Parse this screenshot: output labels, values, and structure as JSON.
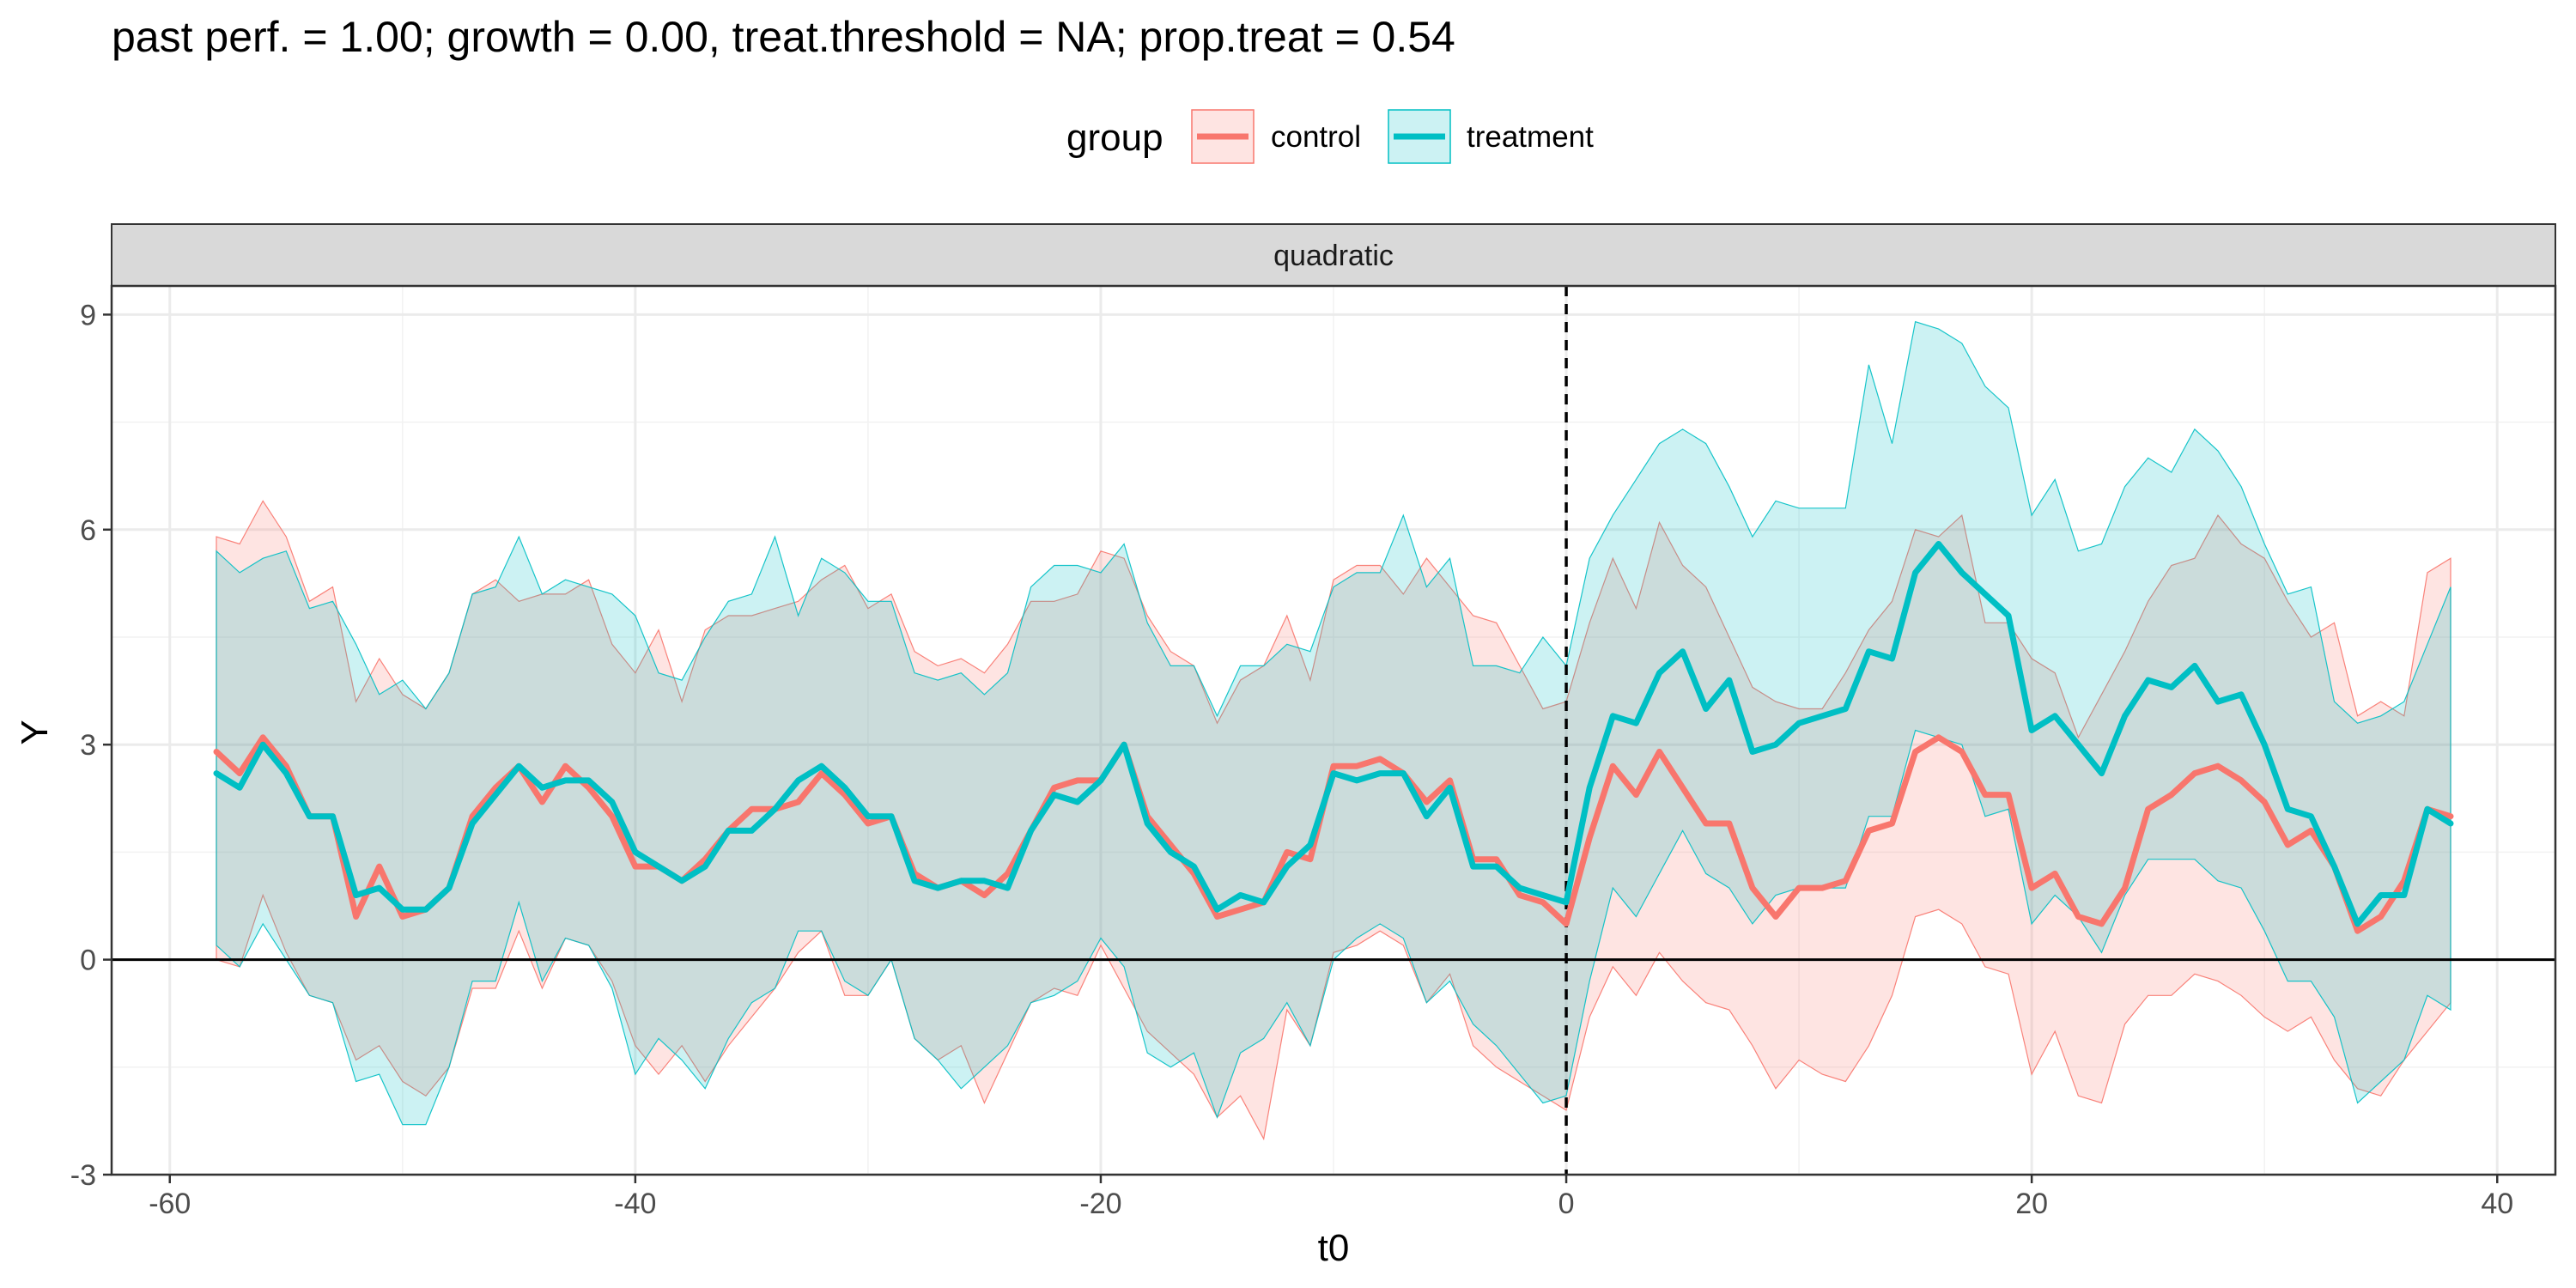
{
  "chart_data": {
    "type": "line",
    "title": "past perf. = 1.00; growth = 0.00,  treat.threshold = NA;  prop.treat = 0.54",
    "facet_label": "quadratic",
    "xlabel": "t0",
    "ylabel": "Y",
    "xlim": [
      -62.5,
      42.5
    ],
    "ylim": [
      -3,
      9.4
    ],
    "x_ticks": [
      -60,
      -40,
      -20,
      0,
      20,
      40
    ],
    "y_ticks": [
      -3,
      0,
      3,
      6,
      9
    ],
    "x_tick_labels": [
      "-60",
      "-40",
      "-20",
      "0",
      "20",
      "40"
    ],
    "y_tick_labels": [
      "-3",
      "0",
      "3",
      "6",
      "9"
    ],
    "grid": true,
    "vline_x": 0,
    "hline_y": 0,
    "legend": {
      "title": "group",
      "position": "top"
    },
    "x": [
      -58,
      -57,
      -56,
      -55,
      -54,
      -53,
      -52,
      -51,
      -50,
      -49,
      -48,
      -47,
      -46,
      -45,
      -44,
      -43,
      -42,
      -41,
      -40,
      -39,
      -38,
      -37,
      -36,
      -35,
      -34,
      -33,
      -32,
      -31,
      -30,
      -29,
      -28,
      -27,
      -26,
      -25,
      -24,
      -23,
      -22,
      -21,
      -20,
      -19,
      -18,
      -17,
      -16,
      -15,
      -14,
      -13,
      -12,
      -11,
      -10,
      -9,
      -8,
      -7,
      -6,
      -5,
      -4,
      -3,
      -2,
      -1,
      0,
      1,
      2,
      3,
      4,
      5,
      6,
      7,
      8,
      9,
      10,
      11,
      12,
      13,
      14,
      15,
      16,
      17,
      18,
      19,
      20,
      21,
      22,
      23,
      24,
      25,
      26,
      27,
      28,
      29,
      30,
      31,
      32,
      33,
      34,
      35,
      36,
      37,
      38
    ],
    "series": [
      {
        "name": "control",
        "color": "#F8766D",
        "values": [
          2.9,
          2.6,
          3.1,
          2.7,
          2.0,
          2.0,
          0.6,
          1.3,
          0.6,
          0.7,
          1.0,
          2.0,
          2.4,
          2.7,
          2.2,
          2.7,
          2.4,
          2.0,
          1.3,
          1.3,
          1.1,
          1.4,
          1.8,
          2.1,
          2.1,
          2.2,
          2.6,
          2.3,
          1.9,
          2.0,
          1.2,
          1.0,
          1.1,
          0.9,
          1.2,
          1.8,
          2.4,
          2.5,
          2.5,
          3.0,
          2.0,
          1.6,
          1.2,
          0.6,
          0.7,
          0.8,
          1.5,
          1.4,
          2.7,
          2.7,
          2.8,
          2.6,
          2.2,
          2.5,
          1.4,
          1.4,
          0.9,
          0.8,
          0.5,
          1.7,
          2.7,
          2.3,
          2.9,
          2.4,
          1.9,
          1.9,
          1.0,
          0.6,
          1.0,
          1.0,
          1.1,
          1.8,
          1.9,
          2.9,
          3.1,
          2.9,
          2.3,
          2.3,
          1.0,
          1.2,
          0.6,
          0.5,
          1.0,
          2.1,
          2.3,
          2.6,
          2.7,
          2.5,
          2.2,
          1.6,
          1.8,
          1.3,
          0.4,
          0.6,
          1.1,
          2.1,
          2.0
        ],
        "lower": [
          0.0,
          -0.1,
          0.9,
          0.1,
          -0.5,
          -0.6,
          -1.4,
          -1.2,
          -1.7,
          -1.9,
          -1.5,
          -0.4,
          -0.4,
          0.4,
          -0.4,
          0.3,
          0.2,
          -0.3,
          -1.2,
          -1.6,
          -1.2,
          -1.7,
          -1.2,
          -0.8,
          -0.4,
          0.1,
          0.4,
          -0.5,
          -0.5,
          0.0,
          -1.1,
          -1.4,
          -1.2,
          -2.0,
          -1.3,
          -0.6,
          -0.4,
          -0.5,
          0.2,
          -0.4,
          -1.0,
          -1.3,
          -1.6,
          -2.2,
          -1.9,
          -2.5,
          -0.7,
          -1.2,
          0.1,
          0.2,
          0.4,
          0.2,
          -0.6,
          -0.2,
          -1.2,
          -1.5,
          -1.7,
          -1.9,
          -2.1,
          -0.8,
          -0.1,
          -0.5,
          0.1,
          -0.3,
          -0.6,
          -0.7,
          -1.2,
          -1.8,
          -1.4,
          -1.6,
          -1.7,
          -1.2,
          -0.5,
          0.6,
          0.7,
          0.5,
          -0.1,
          -0.2,
          -1.6,
          -1.0,
          -1.9,
          -2.0,
          -0.9,
          -0.5,
          -0.5,
          -0.2,
          -0.3,
          -0.5,
          -0.8,
          -1.0,
          -0.8,
          -1.4,
          -1.8,
          -1.9,
          -1.4,
          -1.0,
          -0.6
        ],
        "upper": [
          5.9,
          5.8,
          6.4,
          5.9,
          5.0,
          5.2,
          3.6,
          4.2,
          3.7,
          3.5,
          4.0,
          5.1,
          5.3,
          5.0,
          5.1,
          5.1,
          5.3,
          4.4,
          4.0,
          4.6,
          3.6,
          4.6,
          4.8,
          4.8,
          4.9,
          5.0,
          5.3,
          5.5,
          4.9,
          5.1,
          4.3,
          4.1,
          4.2,
          4.0,
          4.4,
          5.0,
          5.0,
          5.1,
          5.7,
          5.6,
          4.8,
          4.3,
          4.1,
          3.3,
          3.9,
          4.1,
          4.8,
          3.9,
          5.3,
          5.5,
          5.5,
          5.1,
          5.6,
          5.2,
          4.8,
          4.7,
          4.1,
          3.5,
          3.6,
          4.7,
          5.6,
          4.9,
          6.1,
          5.5,
          5.2,
          4.5,
          3.8,
          3.6,
          3.5,
          3.5,
          4.0,
          4.6,
          5.0,
          6.0,
          5.9,
          6.2,
          4.7,
          4.7,
          4.2,
          4.0,
          3.1,
          3.7,
          4.3,
          5.0,
          5.5,
          5.6,
          6.2,
          5.8,
          5.6,
          5.0,
          4.5,
          4.7,
          3.4,
          3.6,
          3.4,
          5.4,
          5.6
        ]
      },
      {
        "name": "treatment",
        "color": "#00BFC4",
        "values": [
          2.6,
          2.4,
          3.0,
          2.6,
          2.0,
          2.0,
          0.9,
          1.0,
          0.7,
          0.7,
          1.0,
          1.9,
          2.3,
          2.7,
          2.4,
          2.5,
          2.5,
          2.2,
          1.5,
          1.3,
          1.1,
          1.3,
          1.8,
          1.8,
          2.1,
          2.5,
          2.7,
          2.4,
          2.0,
          2.0,
          1.1,
          1.0,
          1.1,
          1.1,
          1.0,
          1.8,
          2.3,
          2.2,
          2.5,
          3.0,
          1.9,
          1.5,
          1.3,
          0.7,
          0.9,
          0.8,
          1.3,
          1.6,
          2.6,
          2.5,
          2.6,
          2.6,
          2.0,
          2.4,
          1.3,
          1.3,
          1.0,
          0.9,
          0.8,
          2.4,
          3.4,
          3.3,
          4.0,
          4.3,
          3.5,
          3.9,
          2.9,
          3.0,
          3.3,
          3.4,
          3.5,
          4.3,
          4.2,
          5.4,
          5.8,
          5.4,
          5.1,
          4.8,
          3.2,
          3.4,
          3.0,
          2.6,
          3.4,
          3.9,
          3.8,
          4.1,
          3.6,
          3.7,
          3.0,
          2.1,
          2.0,
          1.3,
          0.5,
          0.9,
          0.9,
          2.1,
          1.9
        ],
        "lower": [
          0.2,
          -0.1,
          0.5,
          0.0,
          -0.5,
          -0.6,
          -1.7,
          -1.6,
          -2.3,
          -2.3,
          -1.5,
          -0.3,
          -0.3,
          0.8,
          -0.3,
          0.3,
          0.2,
          -0.4,
          -1.6,
          -1.1,
          -1.4,
          -1.8,
          -1.1,
          -0.6,
          -0.4,
          0.4,
          0.4,
          -0.3,
          -0.5,
          0.0,
          -1.1,
          -1.4,
          -1.8,
          -1.5,
          -1.2,
          -0.6,
          -0.5,
          -0.3,
          0.3,
          -0.1,
          -1.3,
          -1.5,
          -1.3,
          -2.2,
          -1.3,
          -1.1,
          -0.6,
          -1.2,
          0.0,
          0.3,
          0.5,
          0.3,
          -0.6,
          -0.3,
          -0.9,
          -1.2,
          -1.6,
          -2.0,
          -1.9,
          -0.3,
          1.0,
          0.6,
          1.2,
          1.8,
          1.2,
          1.0,
          0.5,
          0.9,
          1.0,
          1.0,
          1.0,
          2.0,
          2.0,
          3.2,
          3.1,
          3.0,
          2.0,
          2.1,
          0.5,
          0.9,
          0.6,
          0.1,
          0.9,
          1.4,
          1.4,
          1.4,
          1.1,
          1.0,
          0.4,
          -0.3,
          -0.3,
          -0.8,
          -2.0,
          -1.7,
          -1.4,
          -0.5,
          -0.7
        ],
        "upper": [
          5.7,
          5.4,
          5.6,
          5.7,
          4.9,
          5.0,
          4.4,
          3.7,
          3.9,
          3.5,
          4.0,
          5.1,
          5.2,
          5.9,
          5.1,
          5.3,
          5.2,
          5.1,
          4.8,
          4.0,
          3.9,
          4.5,
          5.0,
          5.1,
          5.9,
          4.8,
          5.6,
          5.4,
          5.0,
          5.0,
          4.0,
          3.9,
          4.0,
          3.7,
          4.0,
          5.2,
          5.5,
          5.5,
          5.4,
          5.8,
          4.7,
          4.1,
          4.1,
          3.4,
          4.1,
          4.1,
          4.4,
          4.3,
          5.2,
          5.4,
          5.4,
          6.2,
          5.2,
          5.6,
          4.1,
          4.1,
          4.0,
          4.5,
          4.1,
          5.6,
          6.2,
          6.7,
          7.2,
          7.4,
          7.2,
          6.6,
          5.9,
          6.4,
          6.3,
          6.3,
          6.3,
          8.3,
          7.2,
          8.9,
          8.8,
          8.6,
          8.0,
          7.7,
          6.2,
          6.7,
          5.7,
          5.8,
          6.6,
          7.0,
          6.8,
          7.4,
          7.1,
          6.6,
          5.8,
          5.1,
          5.2,
          3.6,
          3.3,
          3.4,
          3.6,
          4.4,
          5.2
        ]
      }
    ]
  }
}
